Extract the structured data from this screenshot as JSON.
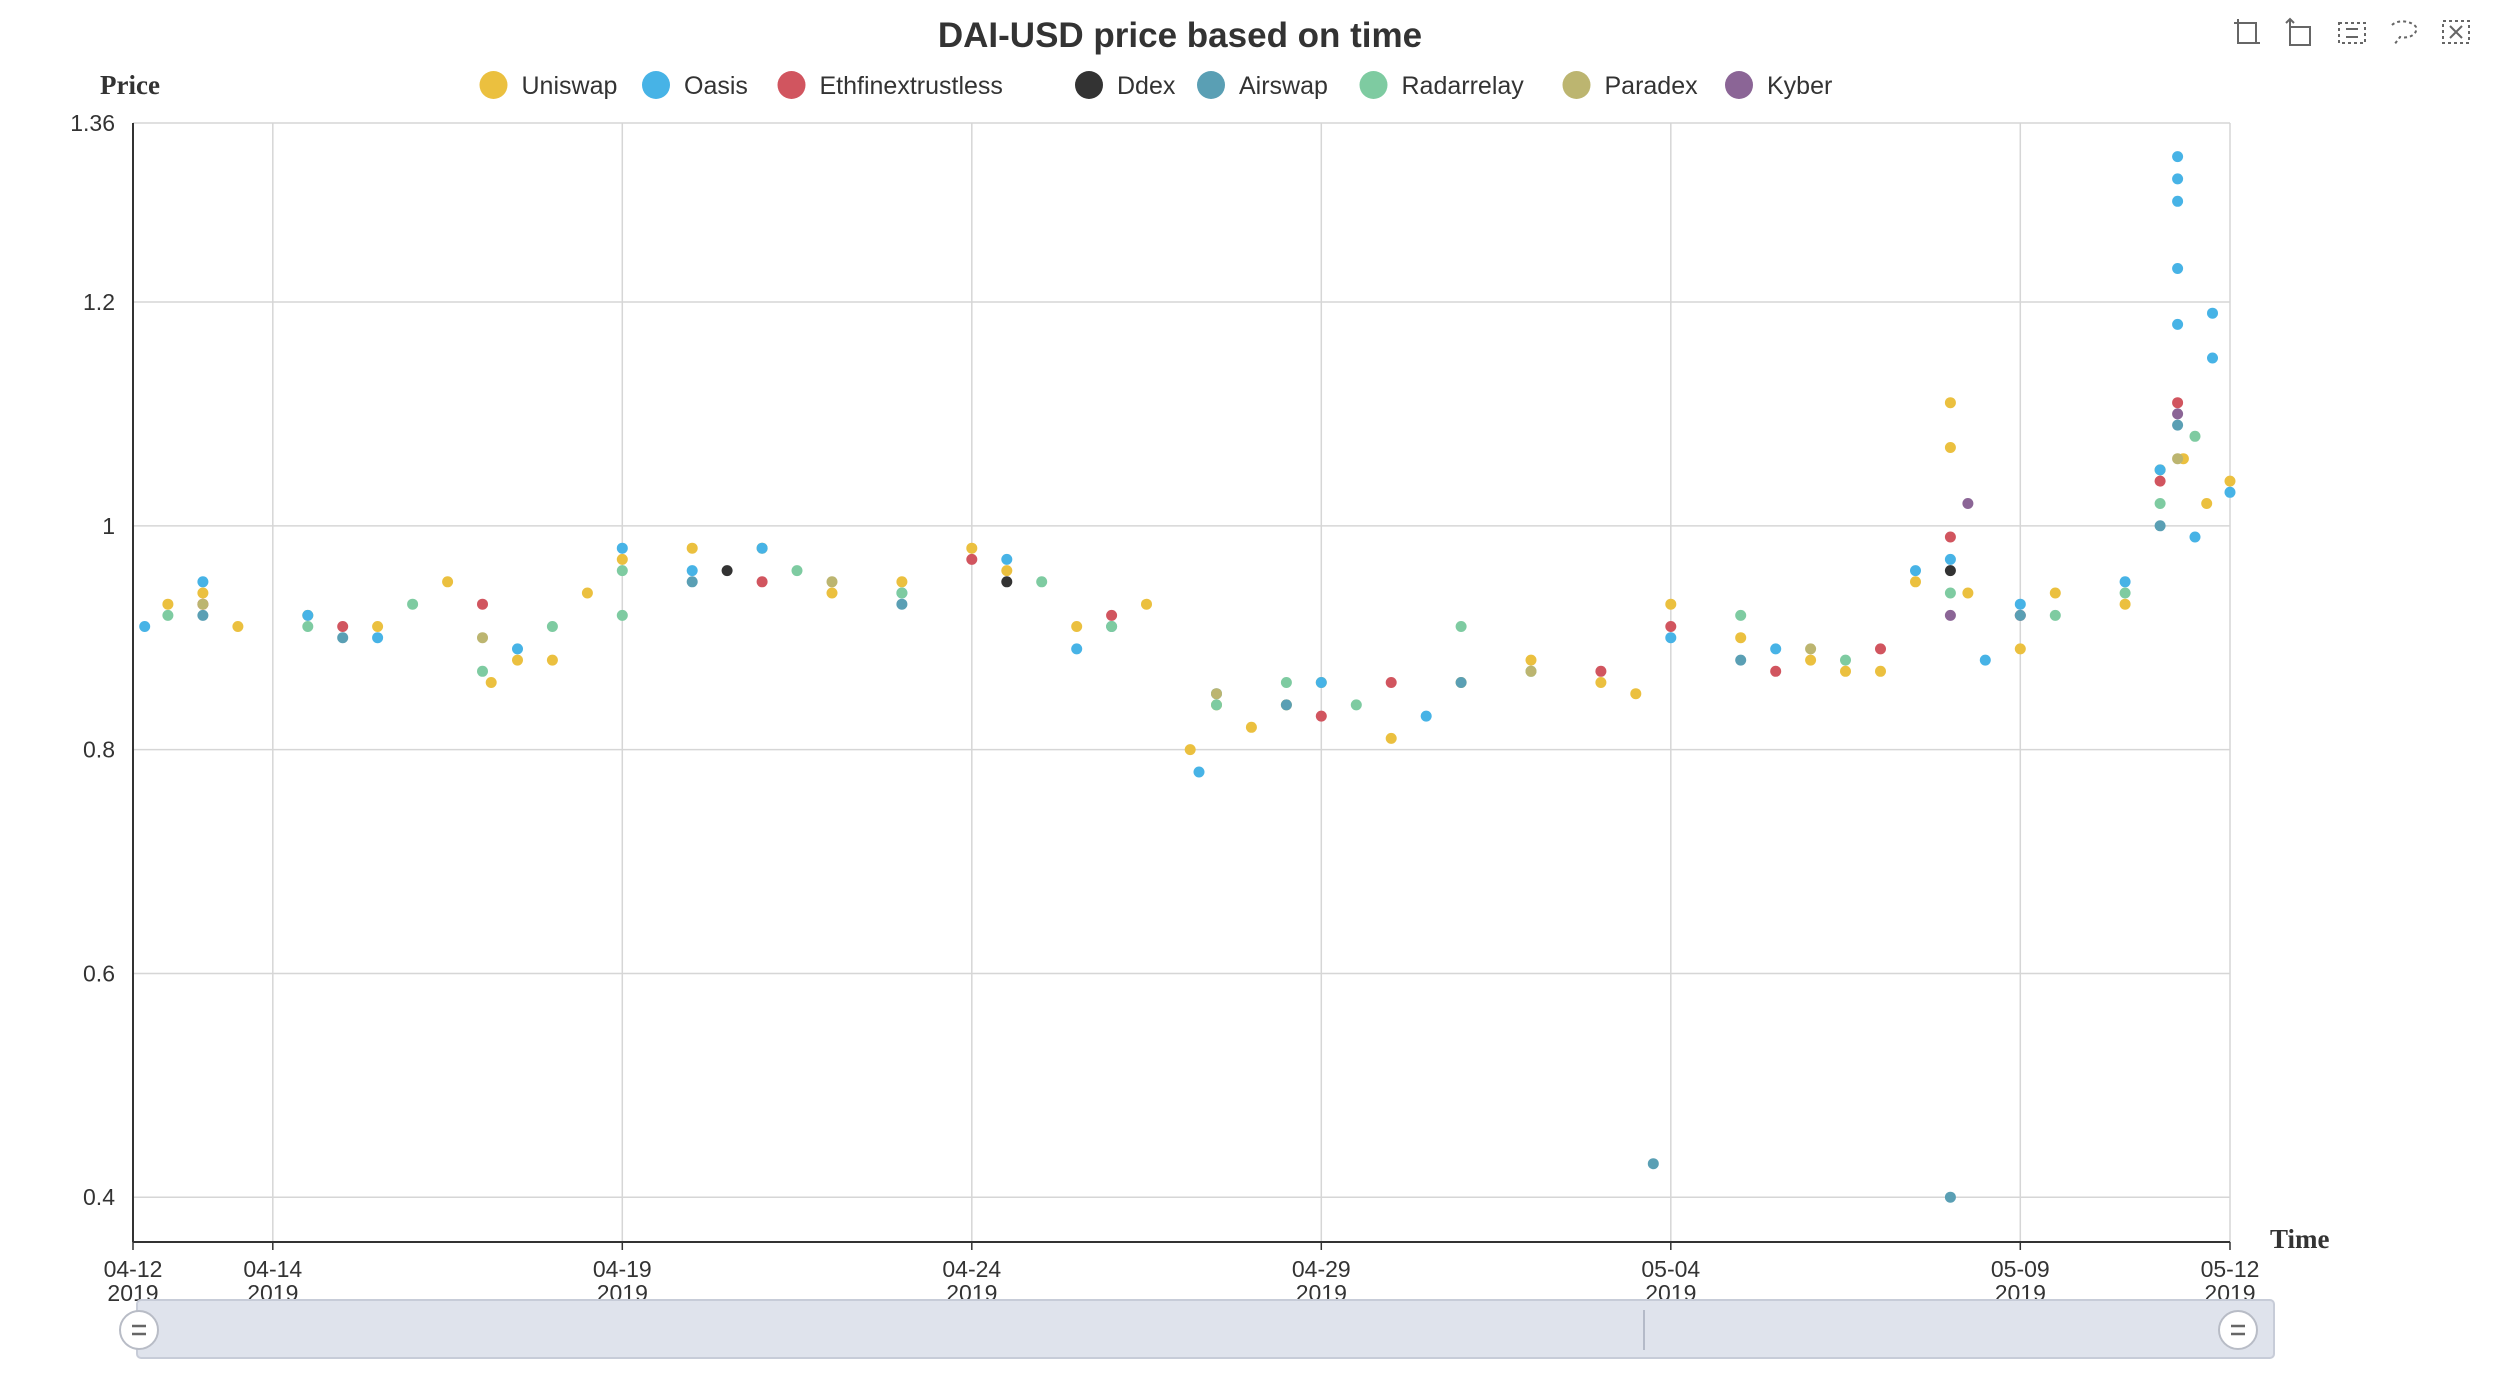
{
  "chart_data": {
    "type": "scatter",
    "title": "DAI-USD price based on time",
    "ylabel": "Price",
    "xlabel": "Time",
    "ylim": [
      0.36,
      1.36
    ],
    "yticks": [
      "1.36",
      "1.2",
      "1",
      "0.8",
      "0.6",
      "0.4"
    ],
    "xlim": [
      "2019-04-12",
      "2019-05-12"
    ],
    "xticks": [
      {
        "date": "2019-04-12",
        "md": "04-12",
        "year": "2019"
      },
      {
        "date": "2019-04-14",
        "md": "04-14",
        "year": "2019"
      },
      {
        "date": "2019-04-19",
        "md": "04-19",
        "year": "2019"
      },
      {
        "date": "2019-04-24",
        "md": "04-24",
        "year": "2019"
      },
      {
        "date": "2019-04-29",
        "md": "04-29",
        "year": "2019"
      },
      {
        "date": "2019-05-04",
        "md": "05-04",
        "year": "2019"
      },
      {
        "date": "2019-05-09",
        "md": "05-09",
        "year": "2019"
      },
      {
        "date": "2019-05-12",
        "md": "05-12",
        "year": "2019"
      }
    ],
    "grid": true,
    "legend_position": "top",
    "series": [
      {
        "name": "Uniswap",
        "color": "#ebc03f",
        "points": [
          [
            "2019-04-12 12:00",
            0.93
          ],
          [
            "2019-04-13 00:00",
            0.94
          ],
          [
            "2019-04-13 12:00",
            0.91
          ],
          [
            "2019-04-14 12:00",
            0.92
          ],
          [
            "2019-04-15 12:00",
            0.91
          ],
          [
            "2019-04-16 12:00",
            0.95
          ],
          [
            "2019-04-17 03:00",
            0.86
          ],
          [
            "2019-04-17 12:00",
            0.88
          ],
          [
            "2019-04-18 00:00",
            0.88
          ],
          [
            "2019-04-18 12:00",
            0.94
          ],
          [
            "2019-04-19 00:00",
            0.97
          ],
          [
            "2019-04-20 00:00",
            0.98
          ],
          [
            "2019-04-21 00:00",
            0.98
          ],
          [
            "2019-04-22 00:00",
            0.94
          ],
          [
            "2019-04-23 00:00",
            0.95
          ],
          [
            "2019-04-24 00:00",
            0.98
          ],
          [
            "2019-04-24 12:00",
            0.96
          ],
          [
            "2019-04-25 12:00",
            0.91
          ],
          [
            "2019-04-26 12:00",
            0.93
          ],
          [
            "2019-04-27 03:00",
            0.8
          ],
          [
            "2019-04-27 12:00",
            0.84
          ],
          [
            "2019-04-28 00:00",
            0.82
          ],
          [
            "2019-04-28 12:00",
            0.84
          ],
          [
            "2019-04-29 00:00",
            0.86
          ],
          [
            "2019-04-30 00:00",
            0.81
          ],
          [
            "2019-05-01 00:00",
            0.86
          ],
          [
            "2019-05-02 00:00",
            0.88
          ],
          [
            "2019-05-03 00:00",
            0.86
          ],
          [
            "2019-05-03 12:00",
            0.85
          ],
          [
            "2019-05-04 00:00",
            0.93
          ],
          [
            "2019-05-05 00:00",
            0.9
          ],
          [
            "2019-05-06 00:00",
            0.88
          ],
          [
            "2019-05-06 12:00",
            0.87
          ],
          [
            "2019-05-07 00:00",
            0.87
          ],
          [
            "2019-05-07 12:00",
            0.95
          ],
          [
            "2019-05-08 00:00",
            1.11
          ],
          [
            "2019-05-08 00:00",
            1.07
          ],
          [
            "2019-05-08 06:00",
            0.94
          ],
          [
            "2019-05-09 00:00",
            0.89
          ],
          [
            "2019-05-09 12:00",
            0.94
          ],
          [
            "2019-05-10 12:00",
            0.93
          ],
          [
            "2019-05-11 00:00",
            1.05
          ],
          [
            "2019-05-11 08:00",
            1.06
          ],
          [
            "2019-05-11 16:00",
            1.02
          ],
          [
            "2019-05-12 00:00",
            1.04
          ]
        ]
      },
      {
        "name": "Oasis",
        "color": "#47b3e6",
        "points": [
          [
            "2019-04-12 04:00",
            0.91
          ],
          [
            "2019-04-13 00:00",
            0.95
          ],
          [
            "2019-04-14 12:00",
            0.92
          ],
          [
            "2019-04-15 12:00",
            0.9
          ],
          [
            "2019-04-17 12:00",
            0.89
          ],
          [
            "2019-04-19 00:00",
            0.98
          ],
          [
            "2019-04-20 00:00",
            0.96
          ],
          [
            "2019-04-21 00:00",
            0.98
          ],
          [
            "2019-04-23 00:00",
            0.94
          ],
          [
            "2019-04-24 12:00",
            0.97
          ],
          [
            "2019-04-25 12:00",
            0.89
          ],
          [
            "2019-04-27 06:00",
            0.78
          ],
          [
            "2019-04-27 12:00",
            0.85
          ],
          [
            "2019-04-29 00:00",
            0.86
          ],
          [
            "2019-04-30 12:00",
            0.83
          ],
          [
            "2019-05-04 00:00",
            0.9
          ],
          [
            "2019-05-05 12:00",
            0.89
          ],
          [
            "2019-05-07 12:00",
            0.96
          ],
          [
            "2019-05-08 00:00",
            0.97
          ],
          [
            "2019-05-08 12:00",
            0.88
          ],
          [
            "2019-05-09 00:00",
            0.93
          ],
          [
            "2019-05-10 12:00",
            0.95
          ],
          [
            "2019-05-11 00:00",
            1.05
          ],
          [
            "2019-05-11 06:00",
            1.33
          ],
          [
            "2019-05-11 06:00",
            1.31
          ],
          [
            "2019-05-11 06:00",
            1.29
          ],
          [
            "2019-05-11 06:00",
            1.23
          ],
          [
            "2019-05-11 06:00",
            1.18
          ],
          [
            "2019-05-11 12:00",
            0.99
          ],
          [
            "2019-05-11 18:00",
            1.19
          ],
          [
            "2019-05-11 18:00",
            1.15
          ],
          [
            "2019-05-12 00:00",
            1.03
          ]
        ]
      },
      {
        "name": "Ethfinextrustless",
        "color": "#d1555f",
        "points": [
          [
            "2019-04-13 00:00",
            0.93
          ],
          [
            "2019-04-15 00:00",
            0.91
          ],
          [
            "2019-04-17 00:00",
            0.93
          ],
          [
            "2019-04-21 00:00",
            0.95
          ],
          [
            "2019-04-24 00:00",
            0.97
          ],
          [
            "2019-04-26 00:00",
            0.92
          ],
          [
            "2019-04-29 00:00",
            0.83
          ],
          [
            "2019-04-30 00:00",
            0.86
          ],
          [
            "2019-05-03 00:00",
            0.87
          ],
          [
            "2019-05-04 00:00",
            0.91
          ],
          [
            "2019-05-05 12:00",
            0.87
          ],
          [
            "2019-05-07 00:00",
            0.89
          ],
          [
            "2019-05-08 00:00",
            0.99
          ],
          [
            "2019-05-09 00:00",
            0.92
          ],
          [
            "2019-05-11 00:00",
            1.04
          ],
          [
            "2019-05-11 06:00",
            1.11
          ]
        ]
      },
      {
        "name": "Ddex",
        "color": "#333333",
        "points": [
          [
            "2019-04-20 12:00",
            0.96
          ],
          [
            "2019-04-24 12:00",
            0.95
          ],
          [
            "2019-05-08 00:00",
            0.96
          ]
        ]
      },
      {
        "name": "Airswap",
        "color": "#5a9fb4",
        "points": [
          [
            "2019-04-13 00:00",
            0.92
          ],
          [
            "2019-04-15 00:00",
            0.9
          ],
          [
            "2019-04-20 00:00",
            0.95
          ],
          [
            "2019-04-23 00:00",
            0.93
          ],
          [
            "2019-04-26 00:00",
            0.91
          ],
          [
            "2019-04-28 12:00",
            0.84
          ],
          [
            "2019-05-01 00:00",
            0.86
          ],
          [
            "2019-05-03 18:00",
            0.43
          ],
          [
            "2019-05-05 00:00",
            0.88
          ],
          [
            "2019-05-08 00:00",
            0.4
          ],
          [
            "2019-05-09 00:00",
            0.92
          ],
          [
            "2019-05-11 00:00",
            1.0
          ],
          [
            "2019-05-11 06:00",
            1.09
          ]
        ]
      },
      {
        "name": "Radarrelay",
        "color": "#7ecba1",
        "points": [
          [
            "2019-04-12 12:00",
            0.92
          ],
          [
            "2019-04-14 12:00",
            0.91
          ],
          [
            "2019-04-16 00:00",
            0.93
          ],
          [
            "2019-04-17 00:00",
            0.87
          ],
          [
            "2019-04-18 00:00",
            0.91
          ],
          [
            "2019-04-19 00:00",
            0.96
          ],
          [
            "2019-04-19 00:00",
            0.92
          ],
          [
            "2019-04-21 12:00",
            0.96
          ],
          [
            "2019-04-23 00:00",
            0.94
          ],
          [
            "2019-04-25 00:00",
            0.95
          ],
          [
            "2019-04-26 00:00",
            0.91
          ],
          [
            "2019-04-27 12:00",
            0.84
          ],
          [
            "2019-04-28 12:00",
            0.86
          ],
          [
            "2019-04-29 12:00",
            0.84
          ],
          [
            "2019-05-01 00:00",
            0.91
          ],
          [
            "2019-05-02 00:00",
            0.87
          ],
          [
            "2019-05-05 00:00",
            0.92
          ],
          [
            "2019-05-06 12:00",
            0.88
          ],
          [
            "2019-05-08 00:00",
            0.94
          ],
          [
            "2019-05-09 12:00",
            0.92
          ],
          [
            "2019-05-10 12:00",
            0.94
          ],
          [
            "2019-05-11 00:00",
            1.02
          ],
          [
            "2019-05-11 12:00",
            1.08
          ]
        ]
      },
      {
        "name": "Paradex",
        "color": "#bcb570",
        "points": [
          [
            "2019-04-13 00:00",
            0.93
          ],
          [
            "2019-04-17 00:00",
            0.9
          ],
          [
            "2019-04-22 00:00",
            0.95
          ],
          [
            "2019-04-27 12:00",
            0.85
          ],
          [
            "2019-05-02 00:00",
            0.87
          ],
          [
            "2019-05-06 00:00",
            0.89
          ],
          [
            "2019-05-11 06:00",
            1.06
          ]
        ]
      },
      {
        "name": "Kyber",
        "color": "#8b6596",
        "points": [
          [
            "2019-05-08 00:00",
            0.92
          ],
          [
            "2019-05-08 06:00",
            1.02
          ],
          [
            "2019-05-11 06:00",
            1.1
          ]
        ]
      }
    ]
  },
  "toolbox": {
    "items": [
      {
        "name": "zoom-select-icon"
      },
      {
        "name": "zoom-back-icon"
      },
      {
        "name": "rect-select-icon"
      },
      {
        "name": "lasso-select-icon"
      },
      {
        "name": "clear-select-icon"
      }
    ]
  }
}
